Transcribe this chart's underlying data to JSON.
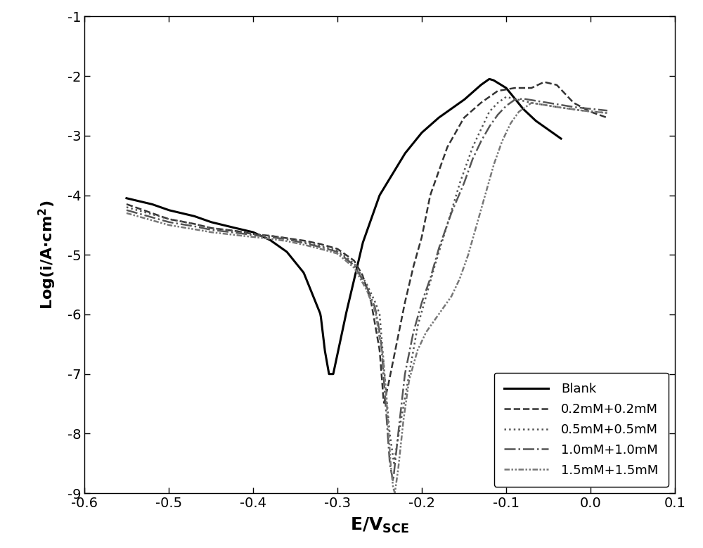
{
  "title": "",
  "xlabel": "E/V",
  "xlabel_sub": "SCE",
  "ylabel": "Log(i/A·cm²)",
  "xlim": [
    -0.6,
    0.1
  ],
  "ylim": [
    -9,
    -1
  ],
  "xticks": [
    -0.6,
    -0.5,
    -0.4,
    -0.3,
    -0.2,
    -0.1,
    0.0,
    0.1
  ],
  "yticks": [
    -9,
    -8,
    -7,
    -6,
    -5,
    -4,
    -3,
    -2,
    -1
  ],
  "background_color": "#ffffff",
  "legend_labels": [
    "Blank",
    "0.2mM+0.2mM",
    "0.5mM+0.5mM",
    "1.0mM+1.0mM",
    "1.5mM+1.5mM"
  ],
  "line_colors": [
    "#000000",
    "#555555",
    "#555555",
    "#555555",
    "#888888"
  ],
  "line_widths": [
    2.2,
    1.8,
    1.8,
    1.8,
    1.8
  ]
}
